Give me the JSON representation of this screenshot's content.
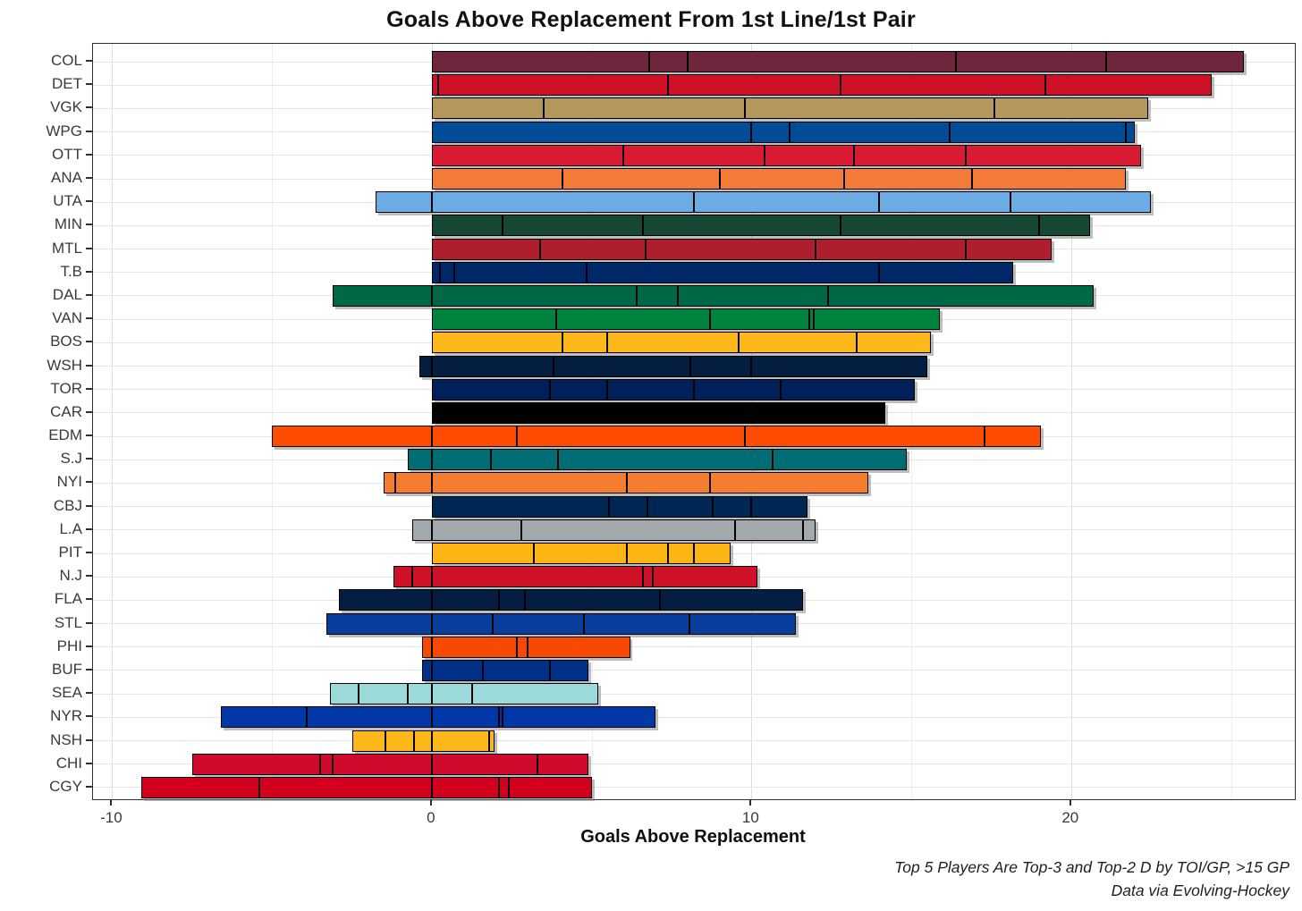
{
  "title": "Goals Above Replacement From 1st Line/1st Pair",
  "x_axis": {
    "label": "Goals Above Replacement",
    "major_ticks": [
      -10,
      0,
      10,
      20
    ],
    "minor_ticks": [
      -5,
      5,
      15,
      25
    ],
    "range": [
      -10.6,
      27.0
    ]
  },
  "caption": {
    "line1": "Top 5 Players Are Top-3 and Top-2 D by TOI/GP, >15 GP",
    "line2": "Data via Evolving-Hockey"
  },
  "chart_data": {
    "type": "bar",
    "orientation": "horizontal",
    "stacked": true,
    "title": "Goals Above Replacement From 1st Line/1st Pair",
    "xlabel": "Goals Above Replacement",
    "ylabel": "",
    "xlim": [
      -10.6,
      27.0
    ],
    "grid": true,
    "note": "Each bar is one team; segments are the top-5 players' GAR values ordered left to right (negative segments extend left of zero).",
    "teams": [
      {
        "abbr": "COL",
        "color": "#6F263D",
        "segments": [
          6.8,
          1.2,
          8.4,
          4.7,
          4.3
        ],
        "total": 25.4
      },
      {
        "abbr": "DET",
        "color": "#CE1126",
        "segments": [
          0.2,
          7.2,
          5.4,
          6.4,
          5.2
        ],
        "total": 24.4
      },
      {
        "abbr": "VGK",
        "color": "#B4975A",
        "segments": [
          3.5,
          6.3,
          7.8,
          4.8
        ],
        "total": 22.4
      },
      {
        "abbr": "WPG",
        "color": "#004C97",
        "segments": [
          10.0,
          1.2,
          5.0,
          5.5,
          0.3
        ],
        "total": 22.0
      },
      {
        "abbr": "OTT",
        "color": "#DA1A32",
        "segments": [
          6.0,
          4.4,
          2.8,
          3.5,
          5.5
        ],
        "total": 22.2
      },
      {
        "abbr": "ANA",
        "color": "#F47A38",
        "segments": [
          4.1,
          4.9,
          3.9,
          4.0,
          4.8
        ],
        "total": 21.7
      },
      {
        "abbr": "UTA",
        "color": "#6CACE4",
        "segments": [
          -1.75,
          8.2,
          5.8,
          4.1,
          4.4
        ],
        "total": 20.75
      },
      {
        "abbr": "MIN",
        "color": "#154734",
        "segments": [
          2.2,
          4.4,
          6.2,
          6.2,
          1.6
        ],
        "total": 20.6
      },
      {
        "abbr": "MTL",
        "color": "#AF1E2D",
        "segments": [
          3.4,
          3.3,
          5.3,
          4.7,
          2.7
        ],
        "total": 19.4
      },
      {
        "abbr": "T.B",
        "color": "#002868",
        "segments": [
          0.25,
          0.45,
          4.15,
          9.15,
          4.2
        ],
        "total": 18.2
      },
      {
        "abbr": "DAL",
        "color": "#006847",
        "segments": [
          -3.1,
          6.4,
          1.3,
          4.7,
          8.3
        ],
        "total": 17.6
      },
      {
        "abbr": "VAN",
        "color": "#00843D",
        "segments": [
          3.9,
          4.8,
          3.1,
          0.15,
          3.95
        ],
        "total": 15.9
      },
      {
        "abbr": "BOS",
        "color": "#FFB81C",
        "segments": [
          4.1,
          1.4,
          4.1,
          3.7,
          2.3
        ],
        "total": 15.6
      },
      {
        "abbr": "WSH",
        "color": "#041E42",
        "segments": [
          -0.4,
          3.8,
          4.3,
          1.9,
          5.5
        ],
        "total": 15.1
      },
      {
        "abbr": "TOR",
        "color": "#00205B",
        "segments": [
          3.7,
          1.8,
          2.7,
          2.7,
          4.2
        ],
        "total": 15.1
      },
      {
        "abbr": "CAR",
        "color": "#010101",
        "segments": [
          14.2
        ],
        "total": 14.2
      },
      {
        "abbr": "EDM",
        "color": "#FF4C00",
        "segments": [
          -5.0,
          2.65,
          7.15,
          7.5,
          1.75
        ],
        "total": 14.05
      },
      {
        "abbr": "S.J",
        "color": "#006D75",
        "segments": [
          -0.75,
          1.85,
          2.1,
          6.7,
          4.2
        ],
        "total": 14.1
      },
      {
        "abbr": "NYI",
        "color": "#F47D30",
        "segments": [
          -0.35,
          -1.15,
          6.1,
          2.6,
          4.95
        ],
        "total": 12.15
      },
      {
        "abbr": "CBJ",
        "color": "#002654",
        "segments": [
          5.55,
          1.2,
          2.05,
          1.2,
          1.75
        ],
        "total": 11.75
      },
      {
        "abbr": "L.A",
        "color": "#A2AAAD",
        "segments": [
          -0.6,
          2.8,
          6.7,
          2.1,
          0.4
        ],
        "total": 11.4
      },
      {
        "abbr": "PIT",
        "color": "#FCB514",
        "segments": [
          3.2,
          2.9,
          1.3,
          0.8,
          1.15
        ],
        "total": 9.35
      },
      {
        "abbr": "N.J",
        "color": "#CE1126",
        "segments": [
          -0.6,
          -0.6,
          6.6,
          0.3,
          3.3
        ],
        "total": 9.0
      },
      {
        "abbr": "FLA",
        "color": "#041E42",
        "segments": [
          -2.9,
          2.1,
          0.8,
          4.25,
          4.45
        ],
        "total": 8.7
      },
      {
        "abbr": "STL",
        "color": "#0A3E9E",
        "segments": [
          -3.3,
          1.9,
          2.85,
          3.3,
          3.35
        ],
        "total": 8.1
      },
      {
        "abbr": "PHI",
        "color": "#F74902",
        "segments": [
          -0.3,
          2.65,
          0.35,
          3.2
        ],
        "total": 5.9
      },
      {
        "abbr": "BUF",
        "color": "#003087",
        "segments": [
          -0.3,
          1.6,
          2.1,
          1.2
        ],
        "total": 4.6
      },
      {
        "abbr": "SEA",
        "color": "#9CD9D9",
        "segments": [
          -0.9,
          -1.55,
          -0.75,
          1.25,
          3.95
        ],
        "total": 2.0
      },
      {
        "abbr": "NYR",
        "color": "#0038A8",
        "segments": [
          -2.7,
          -3.9,
          2.1,
          0.1,
          4.8
        ],
        "total": 0.4
      },
      {
        "abbr": "NSH",
        "color": "#FFB81C",
        "segments": [
          -1.05,
          -0.9,
          -0.55,
          1.8,
          0.15
        ],
        "total": -0.55
      },
      {
        "abbr": "CHI",
        "color": "#CF0A2C",
        "segments": [
          -4.0,
          -0.4,
          -3.1,
          3.3,
          1.6
        ],
        "total": -2.6
      },
      {
        "abbr": "CGY",
        "color": "#D2001C",
        "segments": [
          -3.7,
          -5.4,
          2.1,
          0.3,
          2.6
        ],
        "total": -4.1
      }
    ]
  }
}
